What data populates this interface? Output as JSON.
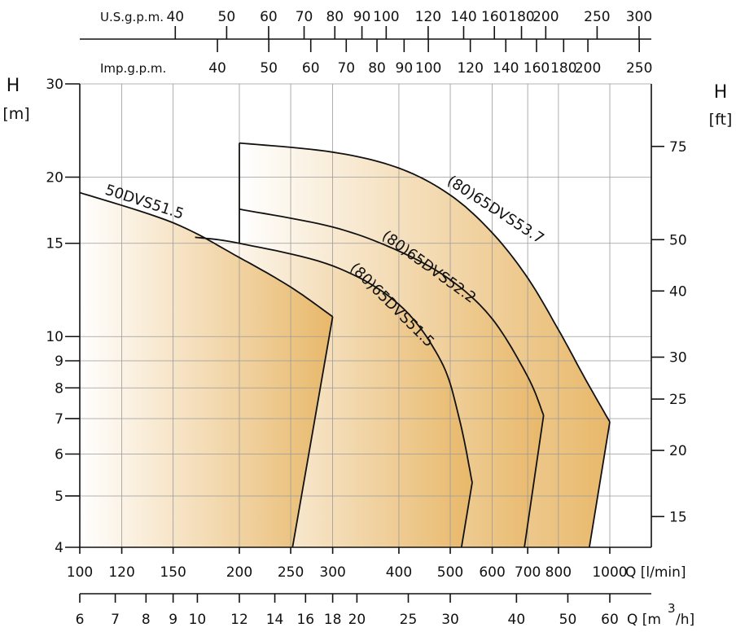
{
  "chart_data": {
    "type": "area",
    "x_axis_bottom": {
      "unit": "Q [l/min]",
      "scale": "log",
      "range": [
        100,
        1150
      ],
      "ticks": [
        100,
        120,
        150,
        200,
        250,
        300,
        400,
        500,
        600,
        700,
        800,
        1000
      ],
      "tick_labels": [
        "100",
        "120",
        "150",
        "200",
        "250",
        "300",
        "400",
        "500",
        "600",
        "700",
        "800",
        "1000"
      ]
    },
    "x_axis_bottom2": {
      "unit": "Q [m³/h]",
      "unit_text": "Q [m",
      "unit_sup": "3",
      "unit_tail": "/h]",
      "scale": "log",
      "ticks": [
        6,
        7,
        8,
        9,
        10,
        12,
        14,
        16,
        18,
        20,
        25,
        30,
        40,
        50,
        60
      ],
      "tick_labels": [
        "6",
        "7",
        "8",
        "9",
        "10",
        "12",
        "14",
        "16",
        "18",
        "20",
        "25",
        "30",
        "40",
        "50",
        "60"
      ]
    },
    "x_axis_top_us": {
      "label": "U.S.g.p.m.",
      "scale": "log",
      "ticks": [
        40,
        50,
        60,
        70,
        80,
        90,
        100,
        120,
        140,
        160,
        180,
        200,
        250,
        300
      ],
      "tick_labels": [
        "40",
        "50",
        "60",
        "70",
        "80",
        "90",
        "100",
        "120",
        "140",
        "160",
        "180",
        "200",
        "250",
        "300"
      ]
    },
    "x_axis_top_imp": {
      "label": "Imp.g.p.m.",
      "scale": "log",
      "ticks": [
        40,
        50,
        60,
        70,
        80,
        90,
        100,
        120,
        140,
        160,
        180,
        200,
        250
      ],
      "tick_labels": [
        "40",
        "50",
        "60",
        "70",
        "80",
        "90",
        "100",
        "120",
        "140",
        "160",
        "180",
        "200",
        "250"
      ]
    },
    "y_axis_left": {
      "title": "H",
      "unit": "[m]",
      "scale": "log",
      "range": [
        4,
        30
      ],
      "ticks": [
        4,
        5,
        6,
        7,
        8,
        9,
        10,
        15,
        20,
        30
      ],
      "tick_labels": [
        "4",
        "5",
        "6",
        "7",
        "8",
        "9",
        "10",
        "15",
        "20",
        "30"
      ]
    },
    "y_axis_right": {
      "title": "H",
      "unit": "[ft]",
      "scale": "log",
      "ticks": [
        15,
        20,
        25,
        30,
        40,
        50,
        75
      ],
      "tick_labels": [
        "15",
        "20",
        "25",
        "30",
        "40",
        "50",
        "75"
      ]
    },
    "series": [
      {
        "name": "(80)65DVS53.7",
        "upper_curve": [
          [
            200,
            23.2
          ],
          [
            300,
            22.3
          ],
          [
            400,
            20.8
          ],
          [
            500,
            18.5
          ],
          [
            600,
            15.7
          ],
          [
            700,
            12.9
          ],
          [
            800,
            10.3
          ],
          [
            900,
            8.3
          ],
          [
            1000,
            6.9
          ]
        ],
        "lower_bound": [
          [
            1000,
            6.9
          ],
          [
            915,
            4.0
          ]
        ],
        "left_bound": 200
      },
      {
        "name": "(80)65DVS52.2",
        "upper_curve": [
          [
            200,
            17.4
          ],
          [
            300,
            16.1
          ],
          [
            400,
            14.5
          ],
          [
            500,
            12.8
          ],
          [
            600,
            10.8
          ],
          [
            700,
            8.4
          ],
          [
            750,
            7.1
          ]
        ],
        "lower_bound": [
          [
            750,
            7.1
          ],
          [
            690,
            4.0
          ]
        ],
        "left_bound": 200
      },
      {
        "name": "(80)65DVS51.5",
        "upper_curve": [
          [
            165,
            15.4
          ],
          [
            200,
            15.0
          ],
          [
            300,
            13.6
          ],
          [
            400,
            11.5
          ],
          [
            480,
            9.0
          ],
          [
            520,
            7.0
          ],
          [
            550,
            5.3
          ]
        ],
        "lower_bound": [
          [
            550,
            5.3
          ],
          [
            525,
            4.0
          ]
        ],
        "left_bound": 165
      },
      {
        "name": "50DVS51.5",
        "upper_curve": [
          [
            100,
            18.7
          ],
          [
            150,
            16.4
          ],
          [
            200,
            14.1
          ],
          [
            250,
            12.4
          ],
          [
            300,
            10.9
          ]
        ],
        "lower_bound": [
          [
            300,
            10.9
          ],
          [
            252,
            4.0
          ]
        ],
        "left_bound": 100
      }
    ],
    "grid": true,
    "fill_color_light": "#ffffff",
    "fill_color_dark": "#e8b86a",
    "line_color": "#111111",
    "grid_color": "#9a9a9a"
  }
}
